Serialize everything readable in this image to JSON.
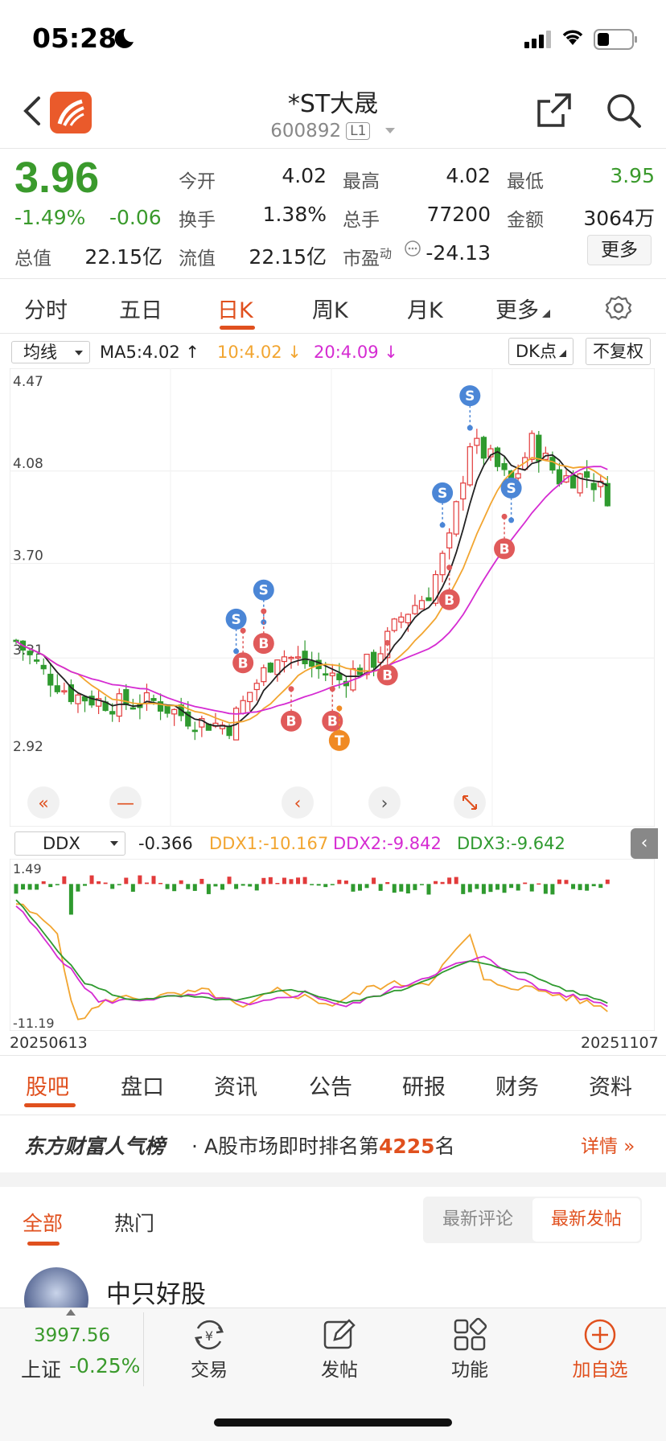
{
  "status_bar": {
    "time": "05:28"
  },
  "header": {
    "stock_name": "*ST大晟",
    "stock_code": "600892",
    "level": "L1"
  },
  "quote": {
    "price": "3.96",
    "pct_change": "-1.49%",
    "abs_change": "-0.06",
    "open_label": "今开",
    "open": "4.02",
    "high_label": "最高",
    "high": "4.02",
    "low_label": "最低",
    "low": "3.95",
    "turnover_label": "换手",
    "turnover": "1.38%",
    "volume_label": "总手",
    "volume": "77200",
    "amount_label": "金额",
    "amount": "3064万",
    "mktcap_label": "总值",
    "mktcap": "22.15亿",
    "float_label": "流值",
    "float_cap": "22.15亿",
    "pe_label": "市盈",
    "pe_sup": "动",
    "pe": "-24.13",
    "more_label": "更多"
  },
  "period_tabs": {
    "intraday": "分时",
    "five_day": "五日",
    "day": "日K",
    "week": "周K",
    "month": "月K",
    "more": "更多"
  },
  "indicators": {
    "ma_select": "均线",
    "ma5": "MA5:4.02",
    "ma10": "10:4.02",
    "ma20": "20:4.09",
    "dk_label": "DK点",
    "fq_label": "不复权",
    "colors": {
      "ma5": "#222222",
      "ma10": "#f2a530",
      "ma20": "#d52bd2",
      "up": "#e23b3b",
      "down": "#2f9a2f",
      "sell": "#4b86d6",
      "buy": "#e05a5a"
    }
  },
  "chart_data": [
    {
      "type": "candlestick",
      "y_ticks": [
        "4.47",
        "4.08",
        "3.70",
        "3.31",
        "2.92"
      ],
      "ylim": [
        2.92,
        4.47
      ],
      "markers": [
        {
          "label": "S",
          "i": 66,
          "price": 4.39
        },
        {
          "label": "S",
          "i": 62,
          "price": 3.99
        },
        {
          "label": "S",
          "i": 36,
          "price": 3.59
        },
        {
          "label": "S",
          "i": 32,
          "price": 3.47
        },
        {
          "label": "S",
          "i": 72,
          "price": 4.01
        },
        {
          "label": "B",
          "i": 36,
          "price": 3.37
        },
        {
          "label": "B",
          "i": 33,
          "price": 3.29
        },
        {
          "label": "B",
          "i": 40,
          "price": 3.05
        },
        {
          "label": "B",
          "i": 46,
          "price": 3.05
        },
        {
          "label": "B",
          "i": 54,
          "price": 3.24
        },
        {
          "label": "B",
          "i": 63,
          "price": 3.55
        },
        {
          "label": "B",
          "i": 71,
          "price": 3.76
        },
        {
          "label": "T",
          "i": 47,
          "price": 2.97
        }
      ]
    },
    {
      "type": "line",
      "name": "DDX",
      "select": "DDX",
      "value": "-0.366",
      "ddx1": "DDX1:-10.167",
      "ddx2": "DDX2:-9.842",
      "ddx3": "DDX3:-9.642",
      "y_ticks": [
        "1.49",
        "-11.19"
      ],
      "ylim": [
        -11.19,
        1.49
      ],
      "x_start": "20250613",
      "x_end": "20251107"
    }
  ],
  "section_tabs": [
    "股吧",
    "盘口",
    "资讯",
    "公告",
    "研报",
    "财务",
    "资料"
  ],
  "rank": {
    "brand": "东方财富人气榜",
    "prefix": "· A股市场即时排名第",
    "number": "4225",
    "suffix": "名",
    "detail": "详情 »"
  },
  "feed": {
    "tab_all": "全部",
    "tab_hot": "热门",
    "sort_comment": "最新评论",
    "sort_post": "最新发帖",
    "author": "中只好股"
  },
  "bottom_bar": {
    "index_value": "3997.56",
    "index_name": "上证",
    "index_pct": "-0.25%",
    "trade": "交易",
    "post": "发帖",
    "functions": "功能",
    "add_watch": "加自选"
  }
}
